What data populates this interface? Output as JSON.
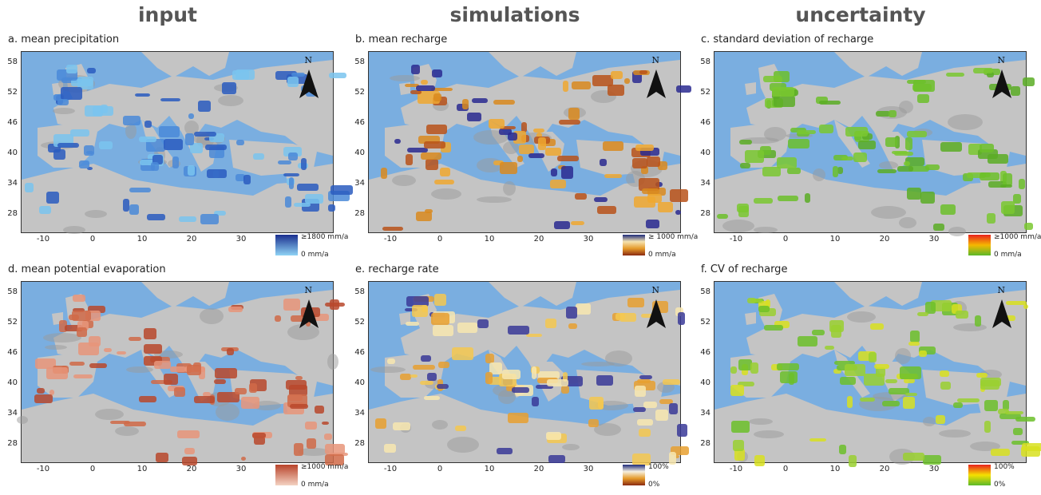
{
  "columns": [
    {
      "title": "input"
    },
    {
      "title": "simulations"
    },
    {
      "title": "uncertainty"
    }
  ],
  "axes": {
    "yticks": [
      "58",
      "52",
      "46",
      "40",
      "34",
      "28"
    ],
    "xticks": [
      "-10",
      "0",
      "10",
      "20",
      "30"
    ]
  },
  "north_label": "N",
  "colors": {
    "sea": "#7aaee0",
    "land": "#c4c4c4",
    "land_dark": "#9a9a9a"
  },
  "panels": [
    {
      "title": "a.  mean precipitation",
      "legend_max": "≥1800 mm/a",
      "legend_min": "0 mm/a",
      "gradient": [
        "#1a2f8f",
        "#8fd3f5"
      ],
      "overlay": [
        "#2a5cc0",
        "#4a8ad8",
        "#7ac4ee"
      ]
    },
    {
      "title": "b.  mean recharge",
      "legend_max": "≥ 1000 mm/a",
      "legend_min": "0 mm/a",
      "gradient": [
        "#1c2a7a",
        "#f5e3b0",
        "#e59a2a",
        "#8a2a10"
      ],
      "overlay": [
        "#d98a1e",
        "#b8521a",
        "#f0a830",
        "#2a2a90"
      ]
    },
    {
      "title": "c.  standard deviation of recharge",
      "legend_max": "≥1000 mm/a",
      "legend_min": "0 mm/a",
      "gradient": [
        "#e8211d",
        "#f5b800",
        "#5bb82a"
      ],
      "overlay": [
        "#6cbf2a",
        "#7ac830",
        "#5aad24"
      ]
    },
    {
      "title": "d.  mean potential evaporation",
      "legend_max": "≥1000 mm/a",
      "legend_min": "0 mm/a",
      "gradient": [
        "#b8432a",
        "#f4d2c2"
      ],
      "overlay": [
        "#e8957a",
        "#d06a48",
        "#b8482c"
      ]
    },
    {
      "title": "e.  recharge rate",
      "legend_max": "100%",
      "legend_min": "0%",
      "gradient": [
        "#1c2a7a",
        "#f5f0e0",
        "#e59a2a",
        "#8a2a10"
      ],
      "overlay": [
        "#f5c850",
        "#e8a030",
        "#f8e8b0",
        "#3a3a98"
      ]
    },
    {
      "title": "f.  CV of recharge",
      "legend_max": "100%",
      "legend_min": "0%",
      "gradient": [
        "#e8211d",
        "#f5e000",
        "#5bb82a"
      ],
      "overlay": [
        "#6cbf2a",
        "#9ad030",
        "#d8e020"
      ]
    }
  ]
}
